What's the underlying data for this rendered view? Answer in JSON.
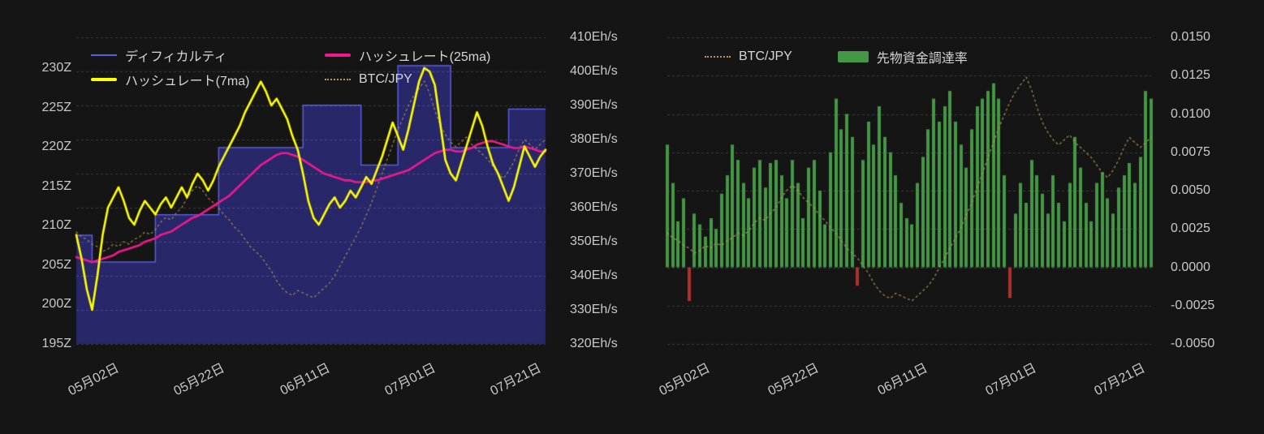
{
  "colors": {
    "background": "#151515",
    "grid": "rgba(255,255,255,0.16)",
    "text": "#c9c9c9",
    "difficulty_line": "#5c5cdf",
    "difficulty_fill": "#27276a",
    "hashrate_7ma": "#ffff00",
    "hashrate_25ma": "#f01a8c",
    "btc_jpy": "#b99854",
    "funding_positive": "#449744",
    "funding_negative": "#b03030"
  },
  "left_chart": {
    "legend": [
      {
        "id": "difficulty",
        "label": "ディフィカルティ",
        "swatch": "line-thin",
        "color": "#5c5cdf"
      },
      {
        "id": "hashrate-25ma",
        "label": "ハッシュレート(25ma)",
        "swatch": "line-thick",
        "color": "#f01a8c"
      },
      {
        "id": "hashrate-7ma",
        "label": "ハッシュレート(7ma)",
        "swatch": "line-thick",
        "color": "#ffff00"
      },
      {
        "id": "btc-jpy",
        "label": "BTC/JPY",
        "swatch": "dotted",
        "color": "#b99854"
      }
    ],
    "left_axis": {
      "unit": "Z",
      "min": 195,
      "max": 230,
      "step": 5,
      "tick_labels": [
        "195Z",
        "200Z",
        "205Z",
        "210Z",
        "215Z",
        "220Z",
        "225Z",
        "230Z"
      ]
    },
    "right_axis": {
      "unit": "Eh/s",
      "min": 320,
      "max": 410,
      "step": 10,
      "tick_labels": [
        "320Eh/s",
        "330Eh/s",
        "340Eh/s",
        "350Eh/s",
        "360Eh/s",
        "370Eh/s",
        "380Eh/s",
        "390Eh/s",
        "400Eh/s",
        "410Eh/s"
      ]
    },
    "x_axis": {
      "tick_labels": [
        "05月02日",
        "05月22日",
        "06月11日",
        "07月01日",
        "07月21日"
      ],
      "tick_indices": [
        0,
        20,
        40,
        60,
        80
      ]
    }
  },
  "right_chart": {
    "legend": [
      {
        "id": "btc-jpy",
        "label": "BTC/JPY",
        "swatch": "dotted",
        "color": "#b99854"
      },
      {
        "id": "funding-rate",
        "label": "先物資金調達率",
        "swatch": "bar",
        "color": "#449744"
      }
    ],
    "right_axis": {
      "min": -0.005,
      "max": 0.015,
      "step": 0.0025,
      "tick_labels": [
        "-0.0050",
        "-0.0025",
        "0.0000",
        "0.0025",
        "0.0050",
        "0.0075",
        "0.0100",
        "0.0125",
        "0.0150"
      ]
    },
    "x_axis": {
      "tick_labels": [
        "05月02日",
        "05月22日",
        "06月11日",
        "07月01日",
        "07月21日"
      ],
      "tick_indices": [
        0,
        20,
        40,
        60,
        80
      ]
    }
  },
  "chart_data": [
    {
      "type": "line",
      "n_points": 90,
      "x_tick_labels": [
        "05月02日",
        "05月22日",
        "06月11日",
        "07月01日",
        "07月21日"
      ],
      "x_tick_indices": [
        0,
        20,
        40,
        60,
        80
      ],
      "left_axis": {
        "unit": "Z",
        "range": [
          195,
          230
        ]
      },
      "right_axis": {
        "unit": "Eh/s",
        "range": [
          320,
          410
        ]
      },
      "grid": "horizontal-dashed",
      "legend_position": "top-left",
      "series": [
        {
          "id": "difficulty",
          "name": "ディフィカルティ",
          "type": "step-area",
          "axis": "left-Z",
          "color": "#5c5cdf",
          "fill_color": "#27276a",
          "values": [
            208.8,
            208.8,
            208.8,
            205.4,
            205.4,
            205.4,
            205.4,
            205.4,
            205.4,
            205.4,
            205.4,
            205.4,
            205.4,
            205.4,
            205.4,
            211.4,
            211.4,
            211.4,
            211.4,
            211.4,
            211.4,
            211.4,
            211.4,
            211.4,
            211.4,
            211.4,
            211.4,
            219.9,
            219.9,
            219.9,
            219.9,
            219.9,
            219.9,
            219.9,
            219.9,
            219.9,
            219.9,
            219.9,
            219.9,
            219.9,
            219.9,
            219.9,
            219.9,
            225.3,
            225.3,
            225.3,
            225.3,
            225.3,
            225.3,
            225.3,
            225.3,
            225.3,
            225.3,
            225.3,
            217.7,
            217.7,
            217.7,
            217.7,
            217.7,
            217.7,
            217.7,
            230.3,
            230.3,
            230.3,
            230.3,
            230.3,
            230.3,
            230.3,
            230.3,
            230.3,
            230.3,
            219.9,
            219.9,
            219.9,
            219.9,
            219.9,
            219.9,
            219.9,
            219.9,
            219.9,
            219.9,
            219.9,
            224.8,
            224.8,
            224.8,
            224.8,
            224.8,
            224.8,
            224.8,
            224.8
          ]
        },
        {
          "id": "btc-jpy",
          "name": "BTC/JPY",
          "type": "dotted-line",
          "axis": "unscaled",
          "scale": "normalized-0-1-no-axis-shown",
          "color": "#b99854",
          "values": [
            0.38,
            0.36,
            0.35,
            0.33,
            0.32,
            0.3,
            0.31,
            0.33,
            0.32,
            0.34,
            0.33,
            0.35,
            0.36,
            0.38,
            0.37,
            0.39,
            0.42,
            0.44,
            0.43,
            0.46,
            0.48,
            0.52,
            0.55,
            0.57,
            0.55,
            0.52,
            0.5,
            0.48,
            0.45,
            0.43,
            0.4,
            0.38,
            0.35,
            0.32,
            0.3,
            0.28,
            0.25,
            0.22,
            0.18,
            0.15,
            0.13,
            0.12,
            0.14,
            0.13,
            0.12,
            0.11,
            0.13,
            0.15,
            0.17,
            0.2,
            0.24,
            0.28,
            0.32,
            0.36,
            0.4,
            0.45,
            0.5,
            0.56,
            0.62,
            0.68,
            0.74,
            0.8,
            0.85,
            0.9,
            0.94,
            0.97,
            1.0,
            0.95,
            0.88,
            0.82,
            0.78,
            0.75,
            0.73,
            0.75,
            0.77,
            0.74,
            0.72,
            0.7,
            0.68,
            0.65,
            0.62,
            0.6,
            0.63,
            0.67,
            0.72,
            0.76,
            0.74,
            0.72,
            0.74,
            0.76
          ]
        },
        {
          "id": "hashrate-25ma",
          "name": "ハッシュレート(25ma)",
          "type": "line",
          "axis": "right-Eh/s",
          "color": "#f01a8c",
          "values": [
            345.5,
            345,
            344.5,
            344,
            344.5,
            345,
            345.5,
            346,
            347,
            347.5,
            348,
            348.5,
            349,
            350,
            350.5,
            351,
            352,
            352.5,
            353,
            354,
            355,
            356,
            357,
            357.5,
            358.5,
            359.5,
            360.5,
            361.5,
            362.5,
            363.5,
            365,
            366.5,
            368,
            369.5,
            371,
            372.5,
            373.5,
            374.5,
            375.5,
            376,
            376,
            375.5,
            375,
            374,
            373,
            372,
            371,
            370,
            369.5,
            369,
            368.5,
            368,
            368,
            367.5,
            367.5,
            367.5,
            368,
            368,
            368.5,
            369,
            369.5,
            370,
            370.5,
            371,
            372,
            373,
            374,
            375,
            376,
            376.5,
            377,
            377,
            376.5,
            376.5,
            377,
            377.5,
            378.5,
            379,
            379.5,
            379.5,
            379,
            378.5,
            378,
            377.5,
            377.5,
            378,
            377.5,
            377,
            376.5,
            376.5
          ]
        },
        {
          "id": "hashrate-7ma",
          "name": "ハッシュレート(7ma)",
          "type": "line",
          "axis": "right-Eh/s",
          "color": "#ffff00",
          "values": [
            352,
            345,
            336,
            330,
            340,
            352,
            360,
            363,
            366,
            362,
            357,
            355,
            359,
            362,
            360,
            358,
            361,
            363,
            360,
            363,
            366,
            363,
            367,
            370,
            368,
            365,
            368,
            372,
            375,
            378,
            381,
            384,
            388,
            391,
            394,
            397,
            394,
            390,
            392,
            389,
            386,
            381,
            377,
            370,
            362,
            357,
            355,
            358,
            361,
            363,
            360,
            362,
            365,
            363,
            366,
            369,
            367,
            371,
            375,
            380,
            385,
            381,
            377,
            383,
            390,
            397,
            401,
            400,
            396,
            385,
            374,
            370,
            368,
            373,
            378,
            383,
            388,
            384,
            378,
            373,
            370,
            366,
            362,
            366,
            372,
            378,
            375,
            372,
            375,
            377
          ]
        }
      ]
    },
    {
      "type": "bar",
      "n_points": 90,
      "x_tick_labels": [
        "05月02日",
        "05月22日",
        "06月11日",
        "07月01日",
        "07月21日"
      ],
      "x_tick_indices": [
        0,
        20,
        40,
        60,
        80
      ],
      "y_axis": {
        "range": [
          -0.005,
          0.015
        ],
        "step": 0.0025
      },
      "grid": "horizontal-dashed",
      "legend_position": "top-center",
      "series": [
        {
          "id": "funding-rate",
          "name": "先物資金調達率",
          "type": "bar",
          "color_positive": "#449744",
          "color_negative": "#b03030",
          "values": [
            0.008,
            0.0055,
            0.003,
            0.0045,
            -0.0022,
            0.0035,
            0.0028,
            0.002,
            0.0032,
            0.0025,
            0.0048,
            0.006,
            0.008,
            0.007,
            0.0055,
            0.0045,
            0.0065,
            0.007,
            0.0052,
            0.0068,
            0.007,
            0.006,
            0.0045,
            0.007,
            0.0055,
            0.0032,
            0.0065,
            0.007,
            0.005,
            0.0028,
            0.0075,
            0.011,
            0.009,
            0.01,
            0.0085,
            -0.0012,
            0.007,
            0.0095,
            0.008,
            0.0105,
            0.0085,
            0.0075,
            0.006,
            0.0042,
            0.0032,
            0.0028,
            0.0055,
            0.0072,
            0.009,
            0.011,
            0.0095,
            0.0105,
            0.0115,
            0.0095,
            0.008,
            0.0065,
            0.009,
            0.0105,
            0.011,
            0.0115,
            0.012,
            0.011,
            0.006,
            -0.002,
            0.0035,
            0.0055,
            0.0042,
            0.007,
            0.006,
            0.0048,
            0.0035,
            0.006,
            0.0042,
            0.003,
            0.0055,
            0.0085,
            0.0065,
            0.0042,
            0.003,
            0.0055,
            0.0062,
            0.0045,
            0.0035,
            0.0052,
            0.006,
            0.0068,
            0.0055,
            0.0072,
            0.0115,
            0.011
          ]
        },
        {
          "id": "btc-jpy",
          "name": "BTC/JPY",
          "type": "dotted-line",
          "axis": "unscaled",
          "scale": "normalized-0-1-no-axis-shown",
          "color": "#b99854",
          "values": [
            0.38,
            0.36,
            0.35,
            0.33,
            0.32,
            0.3,
            0.31,
            0.33,
            0.32,
            0.34,
            0.33,
            0.35,
            0.36,
            0.38,
            0.37,
            0.39,
            0.42,
            0.44,
            0.43,
            0.46,
            0.48,
            0.52,
            0.55,
            0.57,
            0.55,
            0.52,
            0.5,
            0.48,
            0.45,
            0.43,
            0.4,
            0.38,
            0.35,
            0.32,
            0.3,
            0.28,
            0.25,
            0.22,
            0.18,
            0.15,
            0.13,
            0.12,
            0.14,
            0.13,
            0.12,
            0.11,
            0.13,
            0.15,
            0.17,
            0.2,
            0.24,
            0.28,
            0.32,
            0.36,
            0.4,
            0.45,
            0.5,
            0.56,
            0.62,
            0.68,
            0.74,
            0.8,
            0.85,
            0.9,
            0.94,
            0.97,
            1.0,
            0.95,
            0.88,
            0.82,
            0.78,
            0.75,
            0.73,
            0.75,
            0.77,
            0.74,
            0.72,
            0.7,
            0.68,
            0.65,
            0.62,
            0.6,
            0.63,
            0.67,
            0.72,
            0.76,
            0.74,
            0.72,
            0.74,
            0.76
          ]
        }
      ]
    }
  ]
}
